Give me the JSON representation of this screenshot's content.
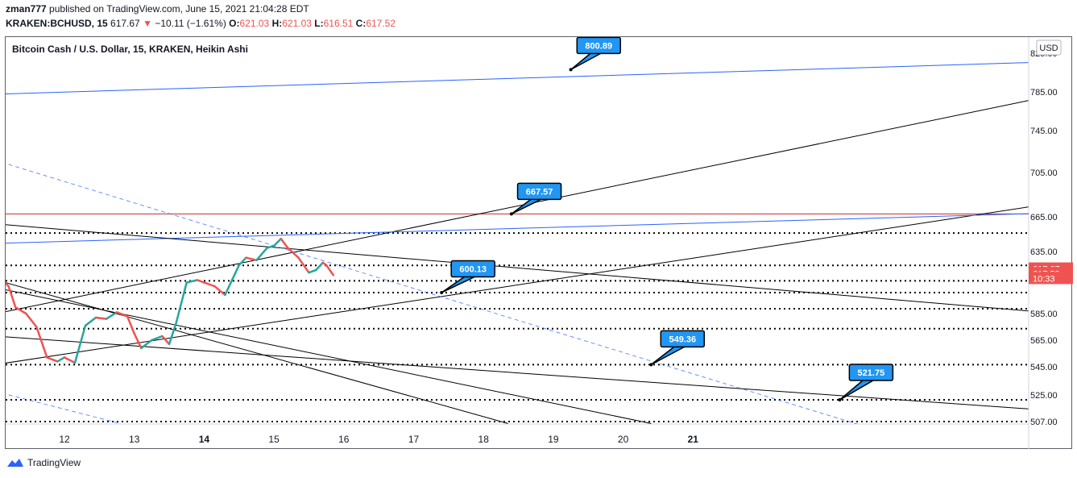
{
  "header": {
    "user": "zman777",
    "published_text": "published on TradingView.com, June 15, 2021 21:04:28 EDT",
    "symbol": "KRAKEN:BCHUSD, 15",
    "last": "617.67",
    "change": "−10.11 (−1.61%)",
    "o_label": "O:",
    "o": "621.03",
    "h_label": "H:",
    "h": "621.03",
    "l_label": "L:",
    "l": "616.51",
    "c_label": "C:",
    "c": "617.52"
  },
  "footer": {
    "brand": "TradingView"
  },
  "colors": {
    "up": "#26a69a",
    "down": "#ef5350",
    "blue_line": "#2962ff",
    "red_line": "#c62828",
    "label_bg": "#2196f3",
    "axis_text": "#131722"
  },
  "chart_data": {
    "type": "line",
    "title": "Bitcoin Cash / U.S. Dollar, 15, KRAKEN, Heikin Ashi",
    "currency": "USD",
    "y_ticks": [
      825,
      785,
      745,
      705,
      665,
      635,
      585,
      565,
      545,
      525,
      507
    ],
    "y_tick_labels": [
      "825.00",
      "785.00",
      "745.00",
      "705.00",
      "665.00",
      "635.00",
      "585.00",
      "565.00",
      "545.00",
      "525.00",
      "507.00"
    ],
    "x_ticks": [
      {
        "day": 12,
        "label": "12",
        "bold": false
      },
      {
        "day": 13,
        "label": "13",
        "bold": false
      },
      {
        "day": 14,
        "label": "14",
        "bold": true
      },
      {
        "day": 15,
        "label": "15",
        "bold": false
      },
      {
        "day": 16,
        "label": "16",
        "bold": false
      },
      {
        "day": 17,
        "label": "17",
        "bold": false
      },
      {
        "day": 18,
        "label": "18",
        "bold": false
      },
      {
        "day": 19,
        "label": "19",
        "bold": false
      },
      {
        "day": 20,
        "label": "20",
        "bold": false
      },
      {
        "day": 21,
        "label": "21",
        "bold": true
      }
    ],
    "price_markers": [
      {
        "label": "617.67",
        "value": 621
      },
      {
        "label": "617.52",
        "value": 617.3
      },
      {
        "label": "10:33",
        "value": 613.3
      }
    ],
    "price_path_values": [
      [
        11.0,
        609
      ],
      [
        11.1,
        612
      ],
      [
        11.2,
        607
      ],
      [
        11.3,
        590
      ],
      [
        11.45,
        585
      ],
      [
        11.6,
        575
      ],
      [
        11.75,
        552
      ],
      [
        11.9,
        549
      ],
      [
        12.0,
        552
      ],
      [
        12.15,
        548
      ],
      [
        12.3,
        576
      ],
      [
        12.45,
        582
      ],
      [
        12.6,
        581
      ],
      [
        12.75,
        586
      ],
      [
        12.9,
        583
      ],
      [
        13.0,
        570
      ],
      [
        13.1,
        559
      ],
      [
        13.25,
        565
      ],
      [
        13.4,
        568
      ],
      [
        13.5,
        562
      ],
      [
        13.6,
        578
      ],
      [
        13.75,
        610
      ],
      [
        13.9,
        612
      ],
      [
        14.0,
        610
      ],
      [
        14.15,
        607
      ],
      [
        14.3,
        600
      ],
      [
        14.4,
        612
      ],
      [
        14.5,
        624
      ],
      [
        14.6,
        630
      ],
      [
        14.75,
        628
      ],
      [
        14.9,
        638
      ],
      [
        15.0,
        640
      ],
      [
        15.1,
        646
      ],
      [
        15.2,
        638
      ],
      [
        15.35,
        630
      ],
      [
        15.5,
        618
      ],
      [
        15.6,
        620
      ],
      [
        15.7,
        626
      ],
      [
        15.75,
        624
      ],
      [
        15.85,
        616
      ]
    ],
    "horizontal_dotted_levels": [
      651,
      623.8,
      611.4,
      601.9,
      588.9,
      573.6,
      546.6,
      521.7,
      507
    ],
    "red_horizontal_level": 667.6,
    "trend_lines": [
      {
        "color": "blue",
        "style": "solid",
        "p1": [
          11.0,
          782.6
        ],
        "p2": [
          25.8,
          815.3
        ]
      },
      {
        "color": "black",
        "style": "solid",
        "p1": [
          11.0,
          584.7
        ],
        "p2": [
          25.8,
          776.0
        ]
      },
      {
        "color": "black",
        "style": "solid",
        "p1": [
          11.0,
          546.5
        ],
        "p2": [
          25.8,
          673.9
        ]
      },
      {
        "color": "blue",
        "style": "solid",
        "p1": [
          11.0,
          642.0
        ],
        "p2": [
          25.8,
          667.8
        ]
      },
      {
        "color": "black",
        "style": "solid",
        "p1": [
          11.0,
          659.0
        ],
        "p2": [
          25.8,
          587.1
        ]
      },
      {
        "color": "black",
        "style": "solid",
        "p1": [
          11.0,
          612.4
        ],
        "p2": [
          18.35,
          505.7
        ]
      },
      {
        "color": "black",
        "style": "solid",
        "p1": [
          11.0,
          606.0
        ],
        "p2": [
          20.4,
          505.7
        ]
      },
      {
        "color": "black",
        "style": "solid",
        "p1": [
          11.0,
          568.1
        ],
        "p2": [
          25.8,
          515.6
        ]
      },
      {
        "color": "blue",
        "style": "dashed",
        "p1": [
          11.2,
          712.7
        ],
        "p2": [
          23.6,
          501.7
        ]
      },
      {
        "color": "blue",
        "style": "dashed",
        "p1": [
          11.0,
          527.6
        ],
        "p2": [
          12.8,
          505.7
        ]
      }
    ],
    "callouts": [
      {
        "label": "800.89",
        "value": 800.89,
        "anchor": [
          19.25,
          808.0
        ],
        "box": [
          19.65,
          833.0
        ]
      },
      {
        "label": "667.57",
        "value": 667.57,
        "anchor": [
          18.4,
          667.6
        ],
        "box": [
          18.8,
          688.0
        ]
      },
      {
        "label": "600.13",
        "value": 600.13,
        "anchor": [
          17.4,
          601.9
        ],
        "box": [
          17.85,
          621.0
        ]
      },
      {
        "label": "549.36",
        "value": 549.36,
        "anchor": [
          20.4,
          546.6
        ],
        "box": [
          20.85,
          566.0
        ]
      },
      {
        "label": "521.75",
        "value": 521.75,
        "anchor": [
          23.1,
          521.7
        ],
        "box": [
          23.55,
          541.0
        ]
      }
    ]
  }
}
